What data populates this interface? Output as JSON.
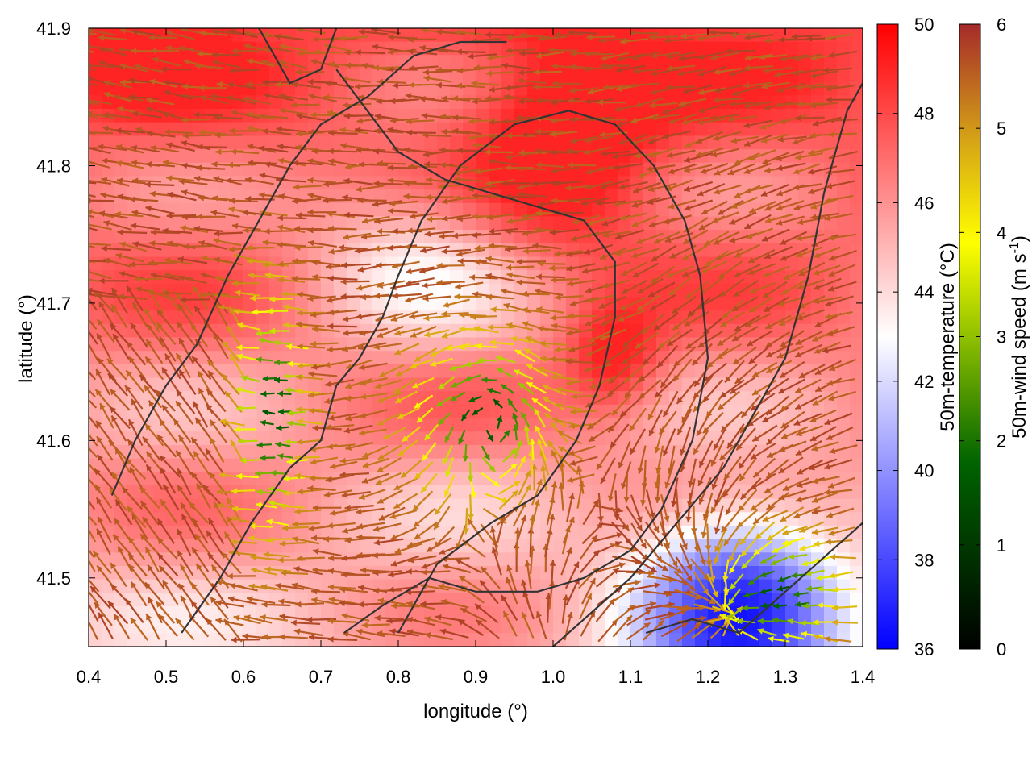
{
  "chart_data": {
    "type": "heatmap",
    "title": "",
    "xlabel": "longitude (°)",
    "ylabel": "latitude (°)",
    "xlim": [
      0.4,
      1.4
    ],
    "ylim": [
      41.45,
      41.9
    ],
    "xticks": [
      "0.4",
      "0.5",
      "0.6",
      "0.7",
      "0.8",
      "0.9",
      "1.0",
      "1.1",
      "1.2",
      "1.3",
      "1.4"
    ],
    "yticks": [
      "41.5",
      "41.6",
      "41.7",
      "41.8",
      "41.9"
    ],
    "grid": false,
    "temperature_colorbar": {
      "label": "50m-temperature (°C)",
      "range": [
        36,
        50
      ],
      "ticks": [
        "36",
        "38",
        "40",
        "42",
        "44",
        "46",
        "48",
        "50"
      ],
      "colors": [
        "#0000ff",
        "#ffffff",
        "#ff0000"
      ]
    },
    "wind_colorbar": {
      "label_main": "50m-wind speed (m s",
      "label_sup": "-1",
      "label_end": ")",
      "range": [
        0,
        6
      ],
      "ticks": [
        "0",
        "1",
        "2",
        "3",
        "4",
        "5",
        "6"
      ],
      "colors": [
        "#000000",
        "#006400",
        "#90c000",
        "#ffff00",
        "#d4a017",
        "#a52a2a"
      ]
    },
    "field_regions": {
      "cold_pool_center": [
        1.24,
        41.47
      ],
      "cold_pool_radius_deg": [
        0.14,
        0.08
      ],
      "min_temperature": 36.5,
      "warm_max_temperature": 49,
      "background_temperature": 46
    },
    "contour_series": [
      {
        "name": "",
        "points": [
          [
            0.52,
            41.46
          ],
          [
            0.57,
            41.5
          ],
          [
            0.61,
            41.54
          ],
          [
            0.66,
            41.58
          ],
          [
            0.7,
            41.6
          ],
          [
            0.72,
            41.64
          ],
          [
            0.75,
            41.66
          ],
          [
            0.78,
            41.69
          ],
          [
            0.8,
            41.72
          ],
          [
            0.83,
            41.76
          ],
          [
            0.88,
            41.8
          ],
          [
            0.95,
            41.83
          ],
          [
            1.02,
            41.84
          ],
          [
            1.08,
            41.83
          ],
          [
            1.13,
            41.8
          ],
          [
            1.17,
            41.76
          ],
          [
            1.19,
            41.72
          ],
          [
            1.2,
            41.66
          ],
          [
            1.18,
            41.6
          ],
          [
            1.14,
            41.55
          ],
          [
            1.1,
            41.52
          ],
          [
            1.04,
            41.5
          ],
          [
            0.98,
            41.49
          ],
          [
            0.9,
            41.49
          ],
          [
            0.84,
            41.5
          ],
          [
            0.78,
            41.48
          ],
          [
            0.73,
            41.46
          ]
        ]
      },
      {
        "name": "",
        "points": [
          [
            0.43,
            41.56
          ],
          [
            0.46,
            41.6
          ],
          [
            0.5,
            41.64
          ],
          [
            0.54,
            41.67
          ],
          [
            0.58,
            41.72
          ],
          [
            0.62,
            41.76
          ],
          [
            0.66,
            41.8
          ],
          [
            0.7,
            41.83
          ],
          [
            0.76,
            41.85
          ],
          [
            0.82,
            41.88
          ],
          [
            0.88,
            41.89
          ],
          [
            0.94,
            41.89
          ]
        ]
      },
      {
        "name": "",
        "points": [
          [
            0.8,
            41.46
          ],
          [
            0.85,
            41.51
          ],
          [
            0.92,
            41.54
          ],
          [
            0.98,
            41.56
          ],
          [
            1.03,
            41.6
          ],
          [
            1.06,
            41.64
          ],
          [
            1.08,
            41.69
          ],
          [
            1.08,
            41.73
          ],
          [
            1.04,
            41.76
          ],
          [
            0.98,
            41.77
          ],
          [
            0.92,
            41.78
          ],
          [
            0.86,
            41.79
          ],
          [
            0.8,
            41.81
          ],
          [
            0.76,
            41.84
          ],
          [
            0.72,
            41.87
          ]
        ]
      },
      {
        "name": "",
        "points": [
          [
            1.0,
            41.45
          ],
          [
            1.04,
            41.47
          ],
          [
            1.1,
            41.5
          ],
          [
            1.16,
            41.54
          ],
          [
            1.22,
            41.58
          ],
          [
            1.26,
            41.62
          ],
          [
            1.3,
            41.66
          ],
          [
            1.33,
            41.72
          ],
          [
            1.35,
            41.78
          ],
          [
            1.38,
            41.84
          ],
          [
            1.4,
            41.86
          ]
        ]
      },
      {
        "name": "",
        "points": [
          [
            1.12,
            41.46
          ],
          [
            1.18,
            41.47
          ],
          [
            1.24,
            41.46
          ],
          [
            1.28,
            41.48
          ],
          [
            1.32,
            41.5
          ],
          [
            1.36,
            41.52
          ],
          [
            1.4,
            41.54
          ]
        ]
      },
      {
        "name": "",
        "points": [
          [
            0.62,
            41.9
          ],
          [
            0.66,
            41.86
          ],
          [
            0.7,
            41.87
          ],
          [
            0.72,
            41.9
          ]
        ]
      }
    ],
    "wind_field": {
      "description_shown": "vectors colored by speed",
      "convergence_center": [
        1.24,
        41.47
      ],
      "rotation_center": [
        0.92,
        41.62
      ],
      "typical_speed": 5.8
    }
  }
}
